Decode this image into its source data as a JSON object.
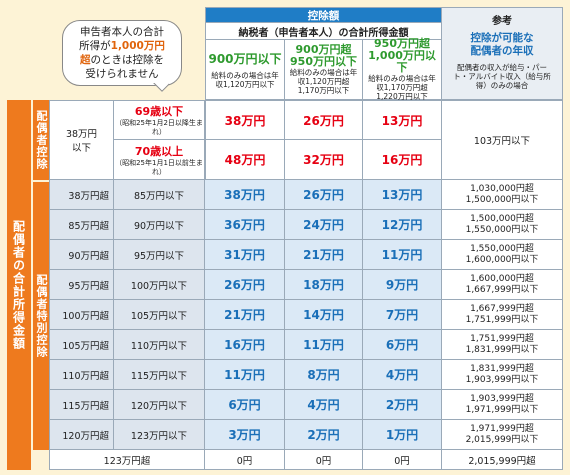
{
  "bubble": {
    "line1": "申告者本人の合計",
    "line2a": "所得が",
    "line2b": "1,000万円",
    "line3a": "超",
    "line3b": "のときは控除を",
    "line4": "受けられません"
  },
  "header": {
    "deduction_label": "控除額",
    "income_label": "納税者（申告者本人）の合計所得金額",
    "col1": {
      "title": "900万円以下",
      "note": "給料のみの場合は年収1,120万円以下"
    },
    "col2": {
      "title_a": "900万円超",
      "title_b": "950万円以下",
      "note": "給料のみの場合は年収1,120万円超1,170万円以下"
    },
    "col3": {
      "title_a": "950万円超",
      "title_b": "1,000万円以下",
      "note": "給料のみの場合は年収1,170万円超1,220万円以下"
    },
    "ref": {
      "label": "参考",
      "title_a": "控除が可能な",
      "title_b": "配偶者の年収",
      "note": "配偶者の収入が給与・パート・アルバイト収入（給与所得）のみの場合"
    }
  },
  "side": {
    "outer": "配偶者の合計所得金額",
    "spouse": "配偶者控除",
    "special": "配偶者特別控除"
  },
  "spouse_rows": {
    "income": "38万円以下",
    "age70minus": {
      "label": "69歳以下",
      "note": "（昭和25年1月2日以降生まれ）",
      "v1": "38万円",
      "v2": "26万円",
      "v3": "13万円"
    },
    "age70plus": {
      "label": "70歳以上",
      "note": "（昭和25年1月1日以前生まれ）",
      "v1": "48万円",
      "v2": "32万円",
      "v3": "16万円"
    },
    "ref": "103万円以下"
  },
  "rows": [
    {
      "from": "38万円超",
      "to": "85万円以下",
      "v1": "38万円",
      "v2": "26万円",
      "v3": "13万円",
      "r1": "1,030,000円超",
      "r2": "1,500,000円以下"
    },
    {
      "from": "85万円超",
      "to": "90万円以下",
      "v1": "36万円",
      "v2": "24万円",
      "v3": "12万円",
      "r1": "1,500,000円超",
      "r2": "1,550,000円以下"
    },
    {
      "from": "90万円超",
      "to": "95万円以下",
      "v1": "31万円",
      "v2": "21万円",
      "v3": "11万円",
      "r1": "1,550,000円超",
      "r2": "1,600,000円以下"
    },
    {
      "from": "95万円超",
      "to": "100万円以下",
      "v1": "26万円",
      "v2": "18万円",
      "v3": "9万円",
      "r1": "1,600,000円超",
      "r2": "1,667,999円以下"
    },
    {
      "from": "100万円超",
      "to": "105万円以下",
      "v1": "21万円",
      "v2": "14万円",
      "v3": "7万円",
      "r1": "1,667,999円超",
      "r2": "1,751,999円以下"
    },
    {
      "from": "105万円超",
      "to": "110万円以下",
      "v1": "16万円",
      "v2": "11万円",
      "v3": "6万円",
      "r1": "1,751,999円超",
      "r2": "1,831,999円以下"
    },
    {
      "from": "110万円超",
      "to": "115万円以下",
      "v1": "11万円",
      "v2": "8万円",
      "v3": "4万円",
      "r1": "1,831,999円超",
      "r2": "1,903,999円以下"
    },
    {
      "from": "115万円超",
      "to": "120万円以下",
      "v1": "6万円",
      "v2": "4万円",
      "v3": "2万円",
      "r1": "1,903,999円超",
      "r2": "1,971,999円以下"
    },
    {
      "from": "120万円超",
      "to": "123万円以下",
      "v1": "3万円",
      "v2": "2万円",
      "v3": "1万円",
      "r1": "1,971,999円超",
      "r2": "2,015,999円以下"
    }
  ],
  "last_row": {
    "income": "123万円超",
    "v1": "0円",
    "v2": "0円",
    "v3": "0円",
    "ref": "2,015,999円超"
  }
}
